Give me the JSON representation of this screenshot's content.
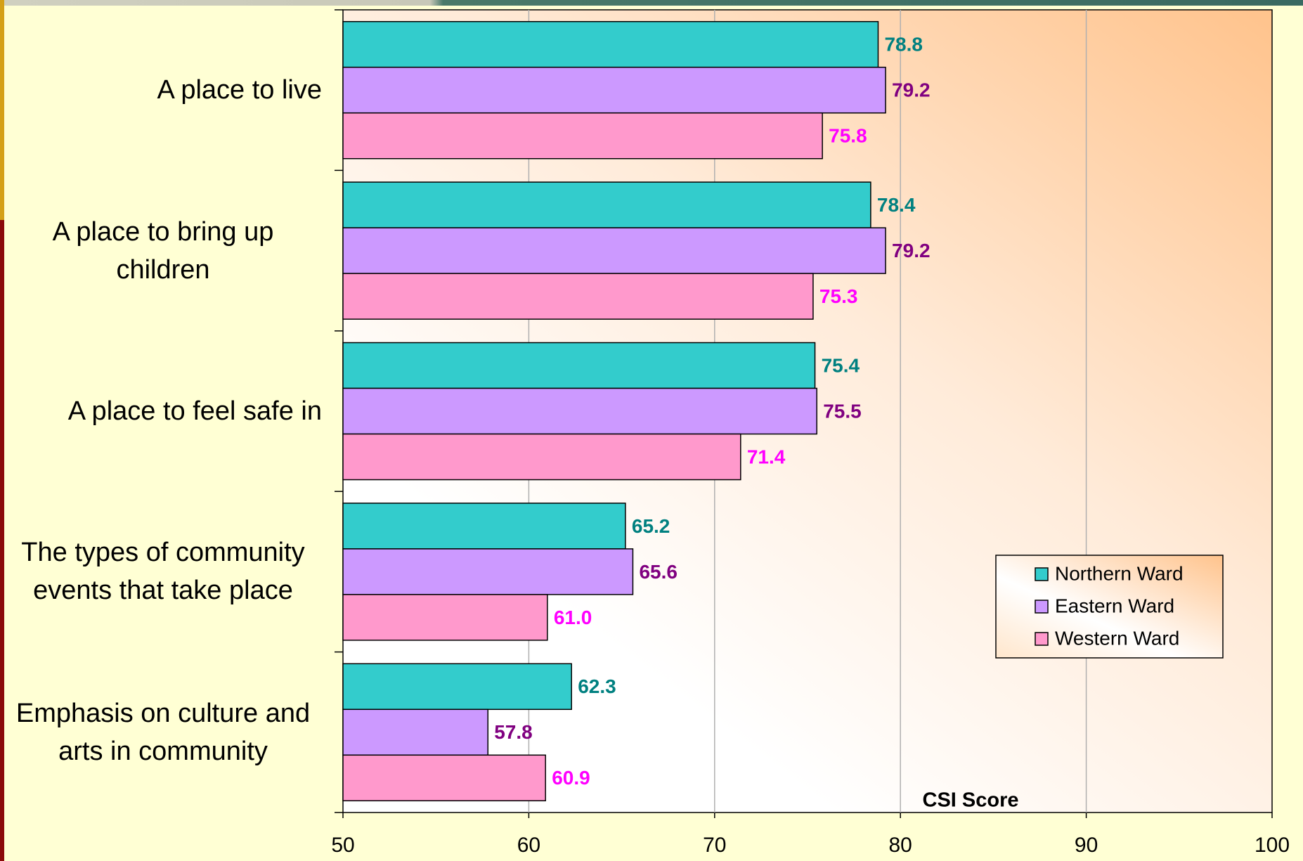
{
  "chart_data": {
    "type": "bar",
    "orientation": "horizontal",
    "categories": [
      "A place to live",
      "A place to bring up children",
      "A place to feel safe in",
      "The types of community events that take place",
      "Emphasis on culture and arts in community"
    ],
    "series": [
      {
        "name": "Northern Ward",
        "color": "#33CCCC",
        "label_color": "#008080",
        "values": [
          78.8,
          78.4,
          75.4,
          65.2,
          62.3
        ]
      },
      {
        "name": "Eastern Ward",
        "color": "#CC99FF",
        "label_color": "#800080",
        "values": [
          79.2,
          79.2,
          75.5,
          65.6,
          57.8
        ]
      },
      {
        "name": "Western Ward",
        "color": "#FF99CC",
        "label_color": "#FF00FF",
        "values": [
          75.8,
          75.3,
          71.4,
          61.0,
          60.9
        ],
        "value_labels": [
          "75.8",
          "75.3",
          "71.4",
          "61.0",
          "60.9"
        ]
      }
    ],
    "x_label": "CSI Score",
    "xlim": [
      50,
      100
    ],
    "xticks": [
      50,
      60,
      70,
      80,
      90,
      100
    ],
    "grid": true,
    "legend": "lower right"
  }
}
